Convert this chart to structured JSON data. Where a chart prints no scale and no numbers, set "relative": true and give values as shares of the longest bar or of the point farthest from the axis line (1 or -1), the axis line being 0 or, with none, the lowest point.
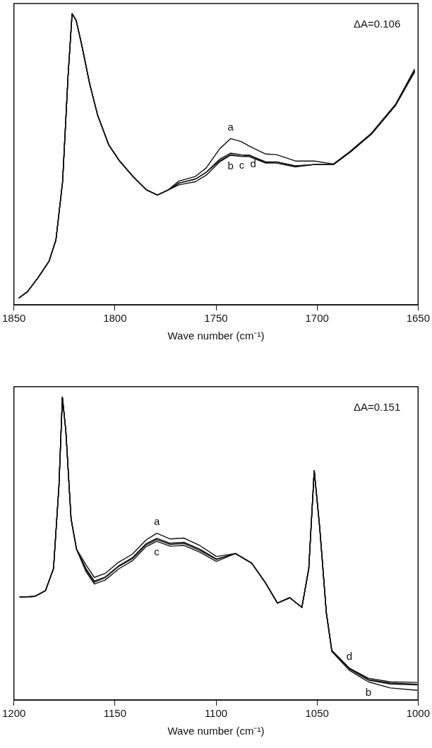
{
  "chart_data": [
    {
      "type": "line",
      "relative": true,
      "xlabel": "Wave number (cm⁻¹)",
      "xlim": [
        1850,
        1650
      ],
      "xticks": [
        1850,
        1800,
        1750,
        1700,
        1650
      ],
      "grid": false,
      "legend": false,
      "marker": "none",
      "line_style": "solid",
      "x": [
        1847.6,
        1843.3,
        1837.9,
        1832.6,
        1829.2,
        1825.9,
        1823.2,
        1821.2,
        1819.2,
        1816.5,
        1812.5,
        1808.5,
        1803.1,
        1797.8,
        1791.1,
        1784.4,
        1779.0,
        1773.6,
        1768.4,
        1760.2,
        1754.9,
        1748.2,
        1742.8,
        1737.5,
        1733.5,
        1725.4,
        1720.1,
        1710.7,
        1701.3,
        1691.9,
        1683.9,
        1673.2,
        1661.1,
        1651.7
      ],
      "series": [
        {
          "name": "a",
          "color": "#111111",
          "values": [
            0.023,
            0.045,
            0.095,
            0.15,
            0.223,
            0.423,
            0.786,
            1.0,
            0.977,
            0.895,
            0.759,
            0.65,
            0.55,
            0.495,
            0.441,
            0.395,
            0.377,
            0.395,
            0.425,
            0.441,
            0.47,
            0.536,
            0.571,
            0.561,
            0.545,
            0.518,
            0.516,
            0.494,
            0.494,
            0.484,
            0.526,
            0.589,
            0.69,
            0.81
          ]
        },
        {
          "name": "b",
          "color": "#111111",
          "values": [
            0.023,
            0.045,
            0.095,
            0.15,
            0.223,
            0.423,
            0.786,
            1.0,
            0.977,
            0.895,
            0.759,
            0.65,
            0.55,
            0.495,
            0.441,
            0.395,
            0.377,
            0.395,
            0.412,
            0.423,
            0.445,
            0.491,
            0.514,
            0.51,
            0.514,
            0.488,
            0.491,
            0.477,
            0.482,
            0.482,
            0.523,
            0.586,
            0.686,
            0.8
          ]
        },
        {
          "name": "c",
          "color": "#111111",
          "values": [
            0.023,
            0.045,
            0.095,
            0.15,
            0.223,
            0.423,
            0.786,
            1.0,
            0.977,
            0.895,
            0.759,
            0.65,
            0.55,
            0.495,
            0.441,
            0.395,
            0.377,
            0.395,
            0.418,
            0.432,
            0.455,
            0.495,
            0.516,
            0.51,
            0.509,
            0.487,
            0.487,
            0.474,
            0.482,
            0.482,
            0.523,
            0.586,
            0.686,
            0.802
          ]
        },
        {
          "name": "d",
          "color": "#111111",
          "values": [
            0.023,
            0.045,
            0.095,
            0.15,
            0.223,
            0.423,
            0.786,
            1.0,
            0.977,
            0.895,
            0.759,
            0.65,
            0.55,
            0.495,
            0.441,
            0.395,
            0.377,
            0.395,
            0.418,
            0.432,
            0.455,
            0.5,
            0.521,
            0.515,
            0.514,
            0.491,
            0.491,
            0.477,
            0.482,
            0.482,
            0.523,
            0.586,
            0.686,
            0.805
          ]
        }
      ],
      "annotations": [
        "ΔA=0.106"
      ]
    },
    {
      "type": "line",
      "relative": true,
      "xlabel": "Wave number (cm⁻¹)",
      "xlim": [
        1200,
        1000
      ],
      "xticks": [
        1200,
        1150,
        1100,
        1050,
        1000
      ],
      "grid": false,
      "legend": false,
      "marker": "none",
      "line_style": "solid",
      "x": [
        1197.2,
        1189.8,
        1184.4,
        1180.4,
        1177.7,
        1176.0,
        1174.3,
        1171.7,
        1169.0,
        1164.3,
        1160.2,
        1154.9,
        1148.2,
        1141.4,
        1134.7,
        1129.3,
        1122.6,
        1115.9,
        1107.9,
        1099.8,
        1090.4,
        1082.3,
        1075.6,
        1069.6,
        1063.5,
        1057.5,
        1054.1,
        1051.4,
        1048.7,
        1045.4,
        1042.7,
        1034.0,
        1024.6,
        1013.8,
        1000.4
      ],
      "series": [
        {
          "name": "a",
          "color": "#111111",
          "values": [
            0.34,
            0.342,
            0.361,
            0.434,
            0.708,
            1.0,
            0.89,
            0.598,
            0.498,
            0.446,
            0.405,
            0.418,
            0.455,
            0.482,
            0.528,
            0.551,
            0.532,
            0.535,
            0.51,
            0.474,
            0.484,
            0.452,
            0.388,
            0.32,
            0.338,
            0.306,
            0.434,
            0.758,
            0.571,
            0.288,
            0.164,
            0.105,
            0.072,
            0.06,
            0.058
          ]
        },
        {
          "name": "b",
          "color": "#111111",
          "values": [
            0.34,
            0.342,
            0.361,
            0.434,
            0.708,
            1.0,
            0.89,
            0.598,
            0.498,
            0.43,
            0.389,
            0.404,
            0.441,
            0.467,
            0.512,
            0.53,
            0.514,
            0.517,
            0.494,
            0.464,
            0.484,
            0.452,
            0.388,
            0.32,
            0.338,
            0.306,
            0.434,
            0.758,
            0.571,
            0.288,
            0.16,
            0.098,
            0.06,
            0.04,
            0.032
          ]
        },
        {
          "name": "c",
          "color": "#111111",
          "values": [
            0.34,
            0.342,
            0.361,
            0.434,
            0.708,
            1.0,
            0.89,
            0.598,
            0.498,
            0.424,
            0.383,
            0.396,
            0.433,
            0.46,
            0.506,
            0.524,
            0.508,
            0.511,
            0.488,
            0.458,
            0.484,
            0.452,
            0.388,
            0.32,
            0.338,
            0.306,
            0.434,
            0.758,
            0.571,
            0.288,
            0.162,
            0.103,
            0.066,
            0.053,
            0.05
          ]
        },
        {
          "name": "d",
          "color": "#111111",
          "values": [
            0.34,
            0.342,
            0.361,
            0.434,
            0.708,
            1.0,
            0.89,
            0.598,
            0.498,
            0.434,
            0.393,
            0.406,
            0.443,
            0.47,
            0.516,
            0.534,
            0.518,
            0.521,
            0.498,
            0.466,
            0.484,
            0.452,
            0.388,
            0.32,
            0.338,
            0.306,
            0.434,
            0.758,
            0.571,
            0.288,
            0.164,
            0.105,
            0.068,
            0.056,
            0.052
          ]
        }
      ],
      "annotations": [
        "ΔA=0.151"
      ]
    }
  ]
}
